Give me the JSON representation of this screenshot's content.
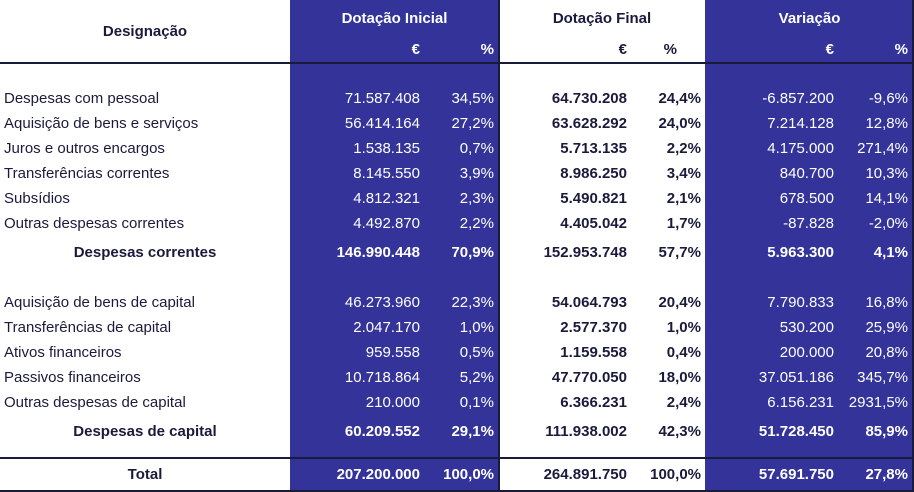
{
  "header": {
    "designation": "Designação",
    "groups": [
      "Dotação Inicial",
      "Dotação Final",
      "Variação"
    ],
    "currency": "€",
    "percent": "%"
  },
  "sections": [
    {
      "rows": [
        {
          "label": "Despesas com pessoal",
          "ini_eur": "71.587.408",
          "ini_pct": "34,5%",
          "fin_eur": "64.730.208",
          "fin_pct": "24,4%",
          "var_eur": "-6.857.200",
          "var_pct": "-9,6%"
        },
        {
          "label": "Aquisição de bens e serviços",
          "ini_eur": "56.414.164",
          "ini_pct": "27,2%",
          "fin_eur": "63.628.292",
          "fin_pct": "24,0%",
          "var_eur": "7.214.128",
          "var_pct": "12,8%"
        },
        {
          "label": "Juros e outros encargos",
          "ini_eur": "1.538.135",
          "ini_pct": "0,7%",
          "fin_eur": "5.713.135",
          "fin_pct": "2,2%",
          "var_eur": "4.175.000",
          "var_pct": "271,4%"
        },
        {
          "label": "Transferências correntes",
          "ini_eur": "8.145.550",
          "ini_pct": "3,9%",
          "fin_eur": "8.986.250",
          "fin_pct": "3,4%",
          "var_eur": "840.700",
          "var_pct": "10,3%"
        },
        {
          "label": "Subsídios",
          "ini_eur": "4.812.321",
          "ini_pct": "2,3%",
          "fin_eur": "5.490.821",
          "fin_pct": "2,1%",
          "var_eur": "678.500",
          "var_pct": "14,1%"
        },
        {
          "label": "Outras despesas correntes",
          "ini_eur": "4.492.870",
          "ini_pct": "2,2%",
          "fin_eur": "4.405.042",
          "fin_pct": "1,7%",
          "var_eur": "-87.828",
          "var_pct": "-2,0%"
        }
      ],
      "subtotal": {
        "label": "Despesas correntes",
        "ini_eur": "146.990.448",
        "ini_pct": "70,9%",
        "fin_eur": "152.953.748",
        "fin_pct": "57,7%",
        "var_eur": "5.963.300",
        "var_pct": "4,1%"
      }
    },
    {
      "rows": [
        {
          "label": "Aquisição de bens de capital",
          "ini_eur": "46.273.960",
          "ini_pct": "22,3%",
          "fin_eur": "54.064.793",
          "fin_pct": "20,4%",
          "var_eur": "7.790.833",
          "var_pct": "16,8%"
        },
        {
          "label": "Transferências de capital",
          "ini_eur": "2.047.170",
          "ini_pct": "1,0%",
          "fin_eur": "2.577.370",
          "fin_pct": "1,0%",
          "var_eur": "530.200",
          "var_pct": "25,9%"
        },
        {
          "label": "Ativos financeiros",
          "ini_eur": "959.558",
          "ini_pct": "0,5%",
          "fin_eur": "1.159.558",
          "fin_pct": "0,4%",
          "var_eur": "200.000",
          "var_pct": "20,8%"
        },
        {
          "label": "Passivos financeiros",
          "ini_eur": "10.718.864",
          "ini_pct": "5,2%",
          "fin_eur": "47.770.050",
          "fin_pct": "18,0%",
          "var_eur": "37.051.186",
          "var_pct": "345,7%"
        },
        {
          "label": "Outras despesas de capital",
          "ini_eur": "210.000",
          "ini_pct": "0,1%",
          "fin_eur": "6.366.231",
          "fin_pct": "2,4%",
          "var_eur": "6.156.231",
          "var_pct": "2931,5%"
        }
      ],
      "subtotal": {
        "label": "Despesas de capital",
        "ini_eur": "60.209.552",
        "ini_pct": "29,1%",
        "fin_eur": "111.938.002",
        "fin_pct": "42,3%",
        "var_eur": "51.728.450",
        "var_pct": "85,9%"
      }
    }
  ],
  "total": {
    "label": "Total",
    "ini_eur": "207.200.000",
    "ini_pct": "100,0%",
    "fin_eur": "264.891.750",
    "fin_pct": "100,0%",
    "var_eur": "57.691.750",
    "var_pct": "27,8%"
  }
}
